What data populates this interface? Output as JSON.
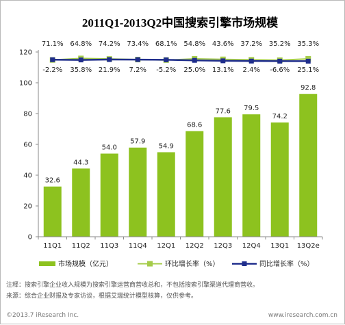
{
  "chart_data": {
    "type": "bar",
    "title": "2011Q1-2013Q2中国搜索引擎市场规模",
    "categories": [
      "11Q1",
      "11Q2",
      "11Q3",
      "11Q4",
      "12Q1",
      "12Q2",
      "12Q3",
      "12Q4",
      "13Q1",
      "13Q2e"
    ],
    "ylim": [
      0,
      120
    ],
    "yticks": [
      0,
      20,
      40,
      60,
      80,
      100,
      120
    ],
    "grid": false,
    "legend_position": "bottom",
    "series": [
      {
        "name": "市场规模（亿元）",
        "kind": "bar",
        "color": "#8dc21f",
        "values": [
          32.6,
          44.3,
          54.0,
          57.9,
          54.9,
          68.6,
          77.6,
          79.5,
          74.2,
          92.8
        ],
        "labels": [
          "32.6",
          "44.3",
          "54.0",
          "57.9",
          "54.9",
          "68.6",
          "77.6",
          "79.5",
          "74.2",
          "92.8"
        ]
      },
      {
        "name": "环比增长率（%）",
        "kind": "line",
        "color": "#a5cc4a",
        "values": [
          -2.2,
          35.8,
          21.9,
          7.2,
          -5.2,
          25.0,
          13.1,
          2.4,
          -6.6,
          25.1
        ],
        "labels": [
          "-2.2%",
          "35.8%",
          "21.9%",
          "7.2%",
          "-5.2%",
          "25.0%",
          "13.1%",
          "2.4%",
          "-6.6%",
          "25.1%"
        ]
      },
      {
        "name": "同比增长率（%）",
        "kind": "line",
        "color": "#1f2d8c",
        "values": [
          71.1,
          64.8,
          74.2,
          73.4,
          68.1,
          54.8,
          43.6,
          37.2,
          35.2,
          35.3
        ],
        "labels": [
          "71.1%",
          "64.8%",
          "74.2%",
          "73.4%",
          "68.1%",
          "54.8%",
          "43.6%",
          "37.2%",
          "35.2%",
          "35.3%"
        ]
      }
    ]
  },
  "notes": {
    "note_line": "注释：搜索引擎企业收入规模为搜索引擎运营商营收总和，不包括搜索引擎渠道代理商营收。",
    "source_line": "来源：综合企业财报及专家访谈，根据艾瑞统计模型核算，仅供参考。"
  },
  "footer": {
    "copyright": "©2013.7 iResearch Inc.",
    "website": "www.iresearch.com.cn"
  }
}
